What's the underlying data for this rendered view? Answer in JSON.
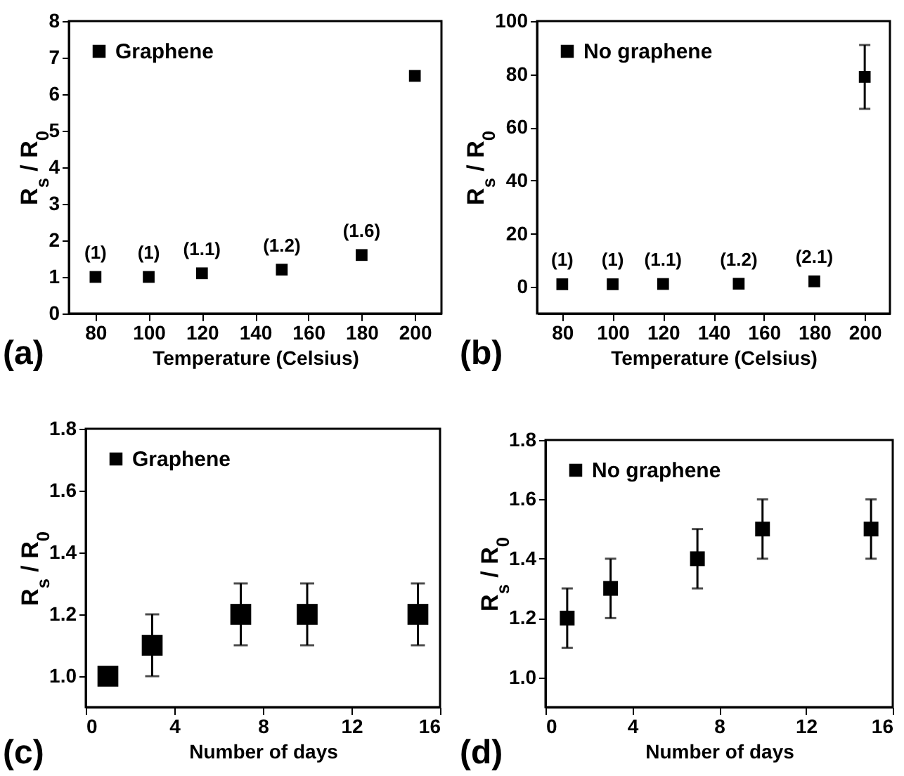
{
  "chart_data": [
    {
      "type": "scatter",
      "xlabel": "Temperature (Celsius)",
      "ylabel": "R$_{s}$ / R$_{0}$",
      "x": [
        80,
        100,
        120,
        150,
        180,
        200
      ],
      "xlim": [
        70,
        210
      ],
      "xticks": [
        80,
        100,
        120,
        140,
        160,
        180,
        200
      ],
      "ylim": [
        0,
        8
      ],
      "yticks": [
        0,
        1,
        2,
        3,
        4,
        5,
        6,
        7,
        8
      ],
      "marker": "square",
      "legend": "top left",
      "annotations": [
        "(a)"
      ],
      "series": [
        {
          "name": "Graphene",
          "color": "#000000",
          "values": [
            1,
            1,
            1.1,
            1.2,
            1.6,
            6.5
          ],
          "value_labels": [
            "(1)",
            "(1)",
            "(1.1)",
            "(1.2)",
            "(1.6)",
            null
          ]
        }
      ]
    },
    {
      "type": "scatter",
      "xlabel": "Temperature (Celsius)",
      "ylabel": "R$_{s}$ / R$_{0}$",
      "x": [
        80,
        100,
        120,
        150,
        180,
        200
      ],
      "xlim": [
        70,
        210
      ],
      "xticks": [
        80,
        100,
        120,
        140,
        160,
        180,
        200
      ],
      "ylim": [
        -10,
        100
      ],
      "yticks": [
        0,
        20,
        40,
        60,
        80,
        100
      ],
      "marker": "square",
      "legend": "top left",
      "annotations": [
        "(b)"
      ],
      "series": [
        {
          "name": "No graphene",
          "color": "#000000",
          "values": [
            1,
            1,
            1.1,
            1.2,
            2.1,
            79
          ],
          "errors": [
            null,
            null,
            null,
            null,
            null,
            [
              67,
              91
            ]
          ],
          "value_labels": [
            "(1)",
            "(1)",
            "(1.1)",
            "(1.2)",
            "(2.1)",
            null
          ]
        }
      ]
    },
    {
      "type": "scatter",
      "xlabel": "Number of days",
      "ylabel": "R$_{s}$ / R$_{0}$",
      "x": [
        1,
        3,
        7,
        10,
        15
      ],
      "xlim": [
        0,
        16
      ],
      "xticks": [
        0,
        4,
        8,
        12,
        16
      ],
      "ylim": [
        0.9,
        1.8
      ],
      "yticks": [
        {
          "value": 1,
          "label": "1.0"
        },
        1.2,
        1.4,
        1.6,
        1.8
      ],
      "marker": "square",
      "legend": "top left",
      "annotations": [
        "(c)"
      ],
      "series": [
        {
          "name": "Graphene",
          "color": "#000000",
          "values": [
            1.0,
            1.1,
            1.2,
            1.2,
            1.2
          ],
          "errors": [
            null,
            0.1,
            0.1,
            0.1,
            0.1
          ]
        }
      ]
    },
    {
      "type": "scatter",
      "xlabel": "Number of days",
      "ylabel": "R$_{s}$ / R$_{0}$",
      "x": [
        1,
        3,
        7,
        10,
        15
      ],
      "xlim": [
        0,
        16
      ],
      "xticks": [
        0,
        4,
        8,
        12,
        16
      ],
      "ylim": [
        0.9,
        1.8
      ],
      "yticks": [
        {
          "value": 1,
          "label": "1.0"
        },
        1.2,
        1.4,
        1.6,
        1.8
      ],
      "marker": "square",
      "legend": "top left",
      "annotations": [
        "(d)"
      ],
      "series": [
        {
          "name": "No graphene",
          "color": "#000000",
          "values": [
            1.2,
            1.3,
            1.4,
            1.5,
            1.5
          ],
          "errors": [
            0.1,
            0.1,
            0.1,
            0.1,
            0.1
          ]
        }
      ]
    }
  ]
}
